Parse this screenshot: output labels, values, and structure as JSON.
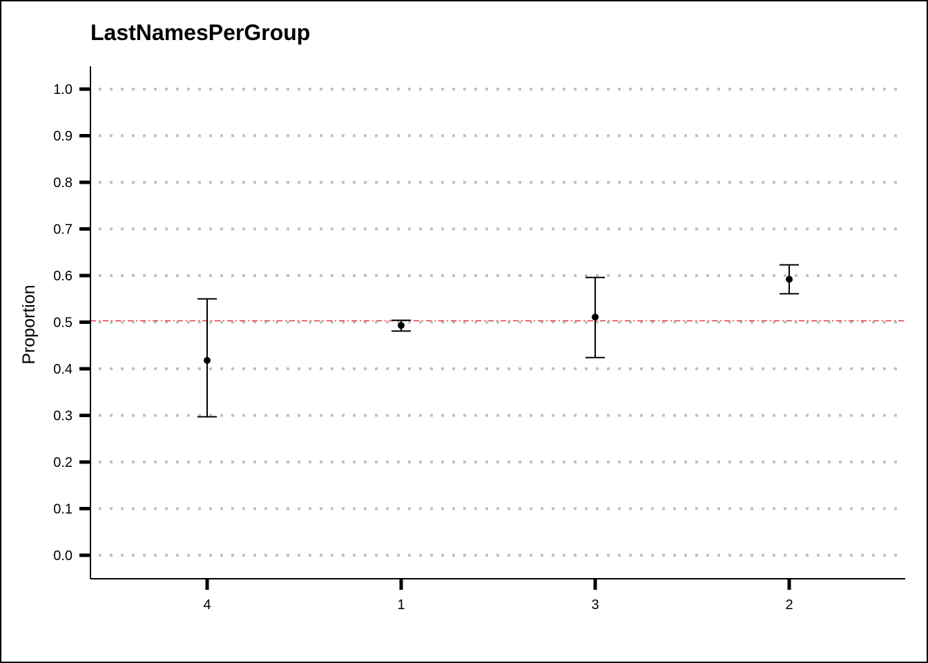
{
  "chart_data": {
    "type": "errorbar",
    "title": "LastNamesPerGroup",
    "xlabel": "",
    "ylabel": "Proportion",
    "categories": [
      "4",
      "1",
      "3",
      "2"
    ],
    "series": [
      {
        "values": [
          0.418,
          0.493,
          0.511,
          0.592
        ],
        "lower": [
          0.297,
          0.481,
          0.424,
          0.561
        ],
        "upper": [
          0.55,
          0.504,
          0.596,
          0.623
        ]
      }
    ],
    "reference_line": {
      "value": 0.503,
      "color": "#e8333c",
      "style": "dash-dot"
    },
    "ylim": [
      0.0,
      1.0
    ],
    "yticks": [
      "0.0",
      "0.1",
      "0.2",
      "0.3",
      "0.4",
      "0.5",
      "0.6",
      "0.7",
      "0.8",
      "0.9",
      "1.0"
    ],
    "grid": "horizontal-dotted",
    "colors": {
      "points": "#000000",
      "grid": "#c0c0c0"
    }
  }
}
